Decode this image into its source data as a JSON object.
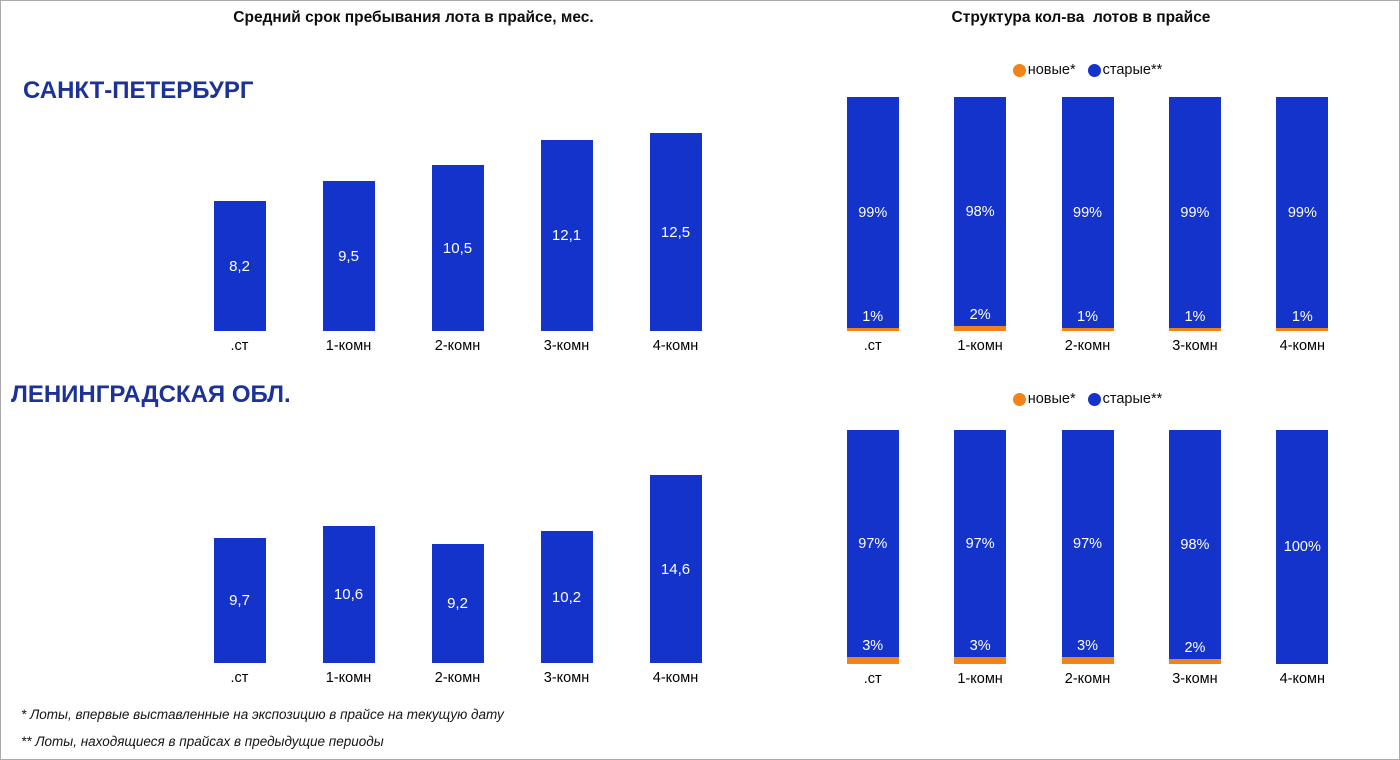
{
  "titles": {
    "left": "Средний срок пребывания лота в прайсе, мес.",
    "right": "Структура кол-ва  лотов в прайсе"
  },
  "sections": {
    "spb": "САНКТ-ПЕТЕРБУРГ",
    "lo": "ЛЕНИНГРАДСКАЯ ОБЛ."
  },
  "legend": {
    "new": "новые*",
    "old": "старые**"
  },
  "footnotes": {
    "first": "* Лоты, впервые выставленные на экспозицию в прайсе на текущую дату",
    "second": "** Лоты, находящиеся в прайсах в предыдущие периоды"
  },
  "colors": {
    "bar_blue": "#1433CB",
    "bar_orange": "#F08418",
    "section_title_blue": "#1C3298"
  },
  "chart_data": [
    {
      "id": "spb-duration",
      "type": "bar",
      "region": "САНКТ-ПЕТЕРБУРГ",
      "title": "Средний срок пребывания лота в прайсе, мес.",
      "categories": [
        ".ст",
        "1-комн",
        "2-комн",
        "3-комн",
        "4-комн"
      ],
      "values": [
        8.2,
        9.5,
        10.5,
        12.1,
        12.5
      ],
      "value_labels": [
        "8,2",
        "9,5",
        "10,5",
        "12,1",
        "12,5"
      ],
      "bar_color": "#1433CB",
      "axes": "none",
      "grid": false
    },
    {
      "id": "spb-structure",
      "type": "bar",
      "subtype": "stacked-100pct",
      "region": "САНКТ-ПЕТЕРБУРГ",
      "title": "Структура кол-ва  лотов в прайсе",
      "categories": [
        ".ст",
        "1-комн",
        "2-комн",
        "3-комн",
        "4-комн"
      ],
      "series": [
        {
          "name": "новые*",
          "color": "#F08418",
          "values": [
            1,
            2,
            1,
            1,
            1
          ],
          "labels": [
            "1%",
            "2%",
            "1%",
            "1%",
            "1%"
          ]
        },
        {
          "name": "старые**",
          "color": "#1433CB",
          "values": [
            99,
            98,
            99,
            99,
            99
          ],
          "labels": [
            "99%",
            "98%",
            "99%",
            "99%",
            "99%"
          ]
        }
      ],
      "legend_position": "top-center",
      "grid": false
    },
    {
      "id": "lo-duration",
      "type": "bar",
      "region": "ЛЕНИНГРАДСКАЯ ОБЛ.",
      "title": "Средний срок пребывания лота в прайсе, мес.",
      "categories": [
        ".ст",
        "1-комн",
        "2-комн",
        "3-комн",
        "4-комн"
      ],
      "values": [
        9.7,
        10.6,
        9.2,
        10.2,
        14.6
      ],
      "value_labels": [
        "9,7",
        "10,6",
        "9,2",
        "10,2",
        "14,6"
      ],
      "bar_color": "#1433CB",
      "axes": "none",
      "grid": false
    },
    {
      "id": "lo-structure",
      "type": "bar",
      "subtype": "stacked-100pct",
      "region": "ЛЕНИНГРАДСКАЯ ОБЛ.",
      "title": "Структура кол-ва  лотов в прайсе",
      "categories": [
        ".ст",
        "1-комн",
        "2-комн",
        "3-комн",
        "4-комн"
      ],
      "series": [
        {
          "name": "новые*",
          "color": "#F08418",
          "values": [
            3,
            3,
            3,
            2,
            0
          ],
          "labels": [
            "3%",
            "3%",
            "3%",
            "2%",
            ""
          ]
        },
        {
          "name": "старые**",
          "color": "#1433CB",
          "values": [
            97,
            97,
            97,
            98,
            100
          ],
          "labels": [
            "97%",
            "97%",
            "97%",
            "98%",
            "100%"
          ]
        }
      ],
      "legend_position": "top-center",
      "grid": false
    }
  ]
}
